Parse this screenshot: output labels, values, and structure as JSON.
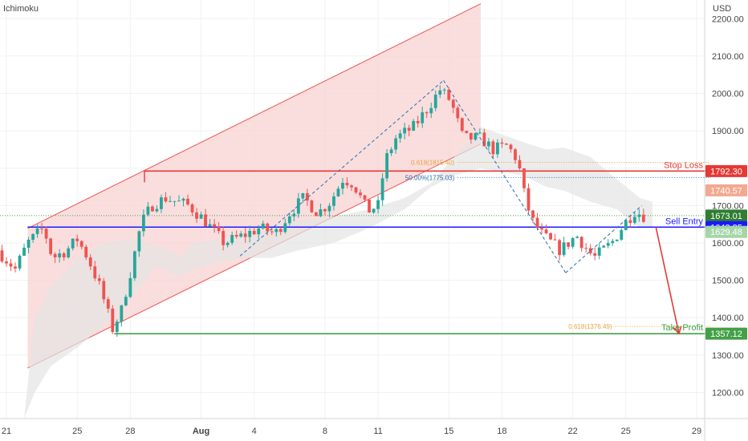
{
  "chart_data": {
    "type": "candlestick",
    "indicator": "Ichimoku",
    "currency": "USD",
    "y_range": [
      1130,
      2250
    ],
    "y_ticks": [
      2200,
      2100,
      2000,
      1900,
      1800,
      1700,
      1600,
      1500,
      1400,
      1300,
      1200
    ],
    "y_tick_labels": [
      "2200.00",
      "2100.00",
      "2000.00",
      "1900.00",
      "1800.00",
      "1700.00",
      "1600.00",
      "1500.00",
      "1400.00",
      "1300.00",
      "1200.00"
    ],
    "x_range_days": [
      0,
      39
    ],
    "x_ticks": [
      {
        "day": 0,
        "label": "21",
        "bold": false
      },
      {
        "day": 4,
        "label": "25",
        "bold": false
      },
      {
        "day": 7,
        "label": "28",
        "bold": false
      },
      {
        "day": 11,
        "label": "Aug",
        "bold": true
      },
      {
        "day": 14,
        "label": "4",
        "bold": false
      },
      {
        "day": 18,
        "label": "8",
        "bold": false
      },
      {
        "day": 21,
        "label": "11",
        "bold": false
      },
      {
        "day": 25,
        "label": "15",
        "bold": false
      },
      {
        "day": 28,
        "label": "18",
        "bold": false
      },
      {
        "day": 32,
        "label": "22",
        "bold": false
      },
      {
        "day": 35,
        "label": "25",
        "bold": false
      },
      {
        "day": 39,
        "label": "29",
        "bold": false
      }
    ],
    "price_anchors": [
      {
        "day": -0.5,
        "price": 1580
      },
      {
        "day": 0.5,
        "price": 1530
      },
      {
        "day": 1.2,
        "price": 1600
      },
      {
        "day": 2.1,
        "price": 1640
      },
      {
        "day": 2.6,
        "price": 1560
      },
      {
        "day": 3.4,
        "price": 1580
      },
      {
        "day": 4.0,
        "price": 1610
      },
      {
        "day": 4.6,
        "price": 1560
      },
      {
        "day": 5.3,
        "price": 1480
      },
      {
        "day": 6.0,
        "price": 1370
      },
      {
        "day": 6.5,
        "price": 1420
      },
      {
        "day": 7.1,
        "price": 1540
      },
      {
        "day": 7.6,
        "price": 1650
      },
      {
        "day": 8.2,
        "price": 1700
      },
      {
        "day": 9.0,
        "price": 1720
      },
      {
        "day": 10.3,
        "price": 1700
      },
      {
        "day": 11.2,
        "price": 1660
      },
      {
        "day": 12.3,
        "price": 1600
      },
      {
        "day": 13.4,
        "price": 1620
      },
      {
        "day": 14.3,
        "price": 1640
      },
      {
        "day": 15.2,
        "price": 1625
      },
      {
        "day": 16.0,
        "price": 1680
      },
      {
        "day": 16.8,
        "price": 1720
      },
      {
        "day": 17.6,
        "price": 1680
      },
      {
        "day": 18.3,
        "price": 1710
      },
      {
        "day": 19.0,
        "price": 1770
      },
      {
        "day": 19.6,
        "price": 1760
      },
      {
        "day": 20.4,
        "price": 1685
      },
      {
        "day": 21.0,
        "price": 1700
      },
      {
        "day": 21.4,
        "price": 1820
      },
      {
        "day": 22.0,
        "price": 1880
      },
      {
        "day": 23.0,
        "price": 1910
      },
      {
        "day": 23.8,
        "price": 1960
      },
      {
        "day": 24.5,
        "price": 2010
      },
      {
        "day": 25.1,
        "price": 1980
      },
      {
        "day": 25.8,
        "price": 1880
      },
      {
        "day": 26.8,
        "price": 1880
      },
      {
        "day": 27.5,
        "price": 1850
      },
      {
        "day": 28.3,
        "price": 1860
      },
      {
        "day": 28.9,
        "price": 1820
      },
      {
        "day": 29.3,
        "price": 1720
      },
      {
        "day": 29.7,
        "price": 1660
      },
      {
        "day": 30.3,
        "price": 1620
      },
      {
        "day": 31.3,
        "price": 1580
      },
      {
        "day": 32.2,
        "price": 1620
      },
      {
        "day": 33.2,
        "price": 1560
      },
      {
        "day": 34.2,
        "price": 1600
      },
      {
        "day": 34.9,
        "price": 1650
      },
      {
        "day": 35.5,
        "price": 1685
      },
      {
        "day": 36.0,
        "price": 1673
      }
    ],
    "rising_channel": [
      {
        "day": 1.2,
        "price": 1639
      },
      {
        "day": 26.8,
        "price": 2240
      },
      {
        "day": 26.8,
        "price": 1865
      },
      {
        "day": 1.2,
        "price": 1265
      }
    ],
    "cloud_upper": [
      {
        "day": 1.0,
        "price": 1130
      },
      {
        "day": 1.6,
        "price": 1400
      },
      {
        "day": 2.5,
        "price": 1480
      },
      {
        "day": 4.0,
        "price": 1560
      },
      {
        "day": 5.5,
        "price": 1600
      },
      {
        "day": 7.0,
        "price": 1610
      },
      {
        "day": 8.5,
        "price": 1590
      },
      {
        "day": 9.3,
        "price": 1580
      },
      {
        "day": 9.8,
        "price": 1560
      },
      {
        "day": 10.5,
        "price": 1600
      },
      {
        "day": 12.0,
        "price": 1610
      },
      {
        "day": 13.5,
        "price": 1620
      },
      {
        "day": 15.0,
        "price": 1640
      },
      {
        "day": 16.5,
        "price": 1660
      },
      {
        "day": 18.5,
        "price": 1670
      },
      {
        "day": 20.5,
        "price": 1690
      },
      {
        "day": 22.5,
        "price": 1720
      },
      {
        "day": 24.0,
        "price": 1760
      },
      {
        "day": 25.3,
        "price": 1830
      },
      {
        "day": 26.8,
        "price": 1910
      },
      {
        "day": 28.0,
        "price": 1890
      },
      {
        "day": 29.2,
        "price": 1870
      },
      {
        "day": 30.5,
        "price": 1850
      },
      {
        "day": 31.5,
        "price": 1855
      },
      {
        "day": 33.0,
        "price": 1830
      },
      {
        "day": 34.5,
        "price": 1770
      },
      {
        "day": 35.8,
        "price": 1720
      },
      {
        "day": 36.5,
        "price": 1710
      }
    ],
    "cloud_lower": [
      {
        "day": 36.5,
        "price": 1640
      },
      {
        "day": 35.8,
        "price": 1640
      },
      {
        "day": 34.5,
        "price": 1690
      },
      {
        "day": 33.0,
        "price": 1710
      },
      {
        "day": 31.5,
        "price": 1740
      },
      {
        "day": 30.5,
        "price": 1750
      },
      {
        "day": 29.2,
        "price": 1780
      },
      {
        "day": 28.0,
        "price": 1790
      },
      {
        "day": 26.8,
        "price": 1800
      },
      {
        "day": 25.3,
        "price": 1780
      },
      {
        "day": 24.0,
        "price": 1750
      },
      {
        "day": 22.5,
        "price": 1690
      },
      {
        "day": 20.5,
        "price": 1640
      },
      {
        "day": 18.5,
        "price": 1600
      },
      {
        "day": 16.5,
        "price": 1580
      },
      {
        "day": 15.0,
        "price": 1560
      },
      {
        "day": 13.5,
        "price": 1560
      },
      {
        "day": 12.0,
        "price": 1550
      },
      {
        "day": 10.5,
        "price": 1530
      },
      {
        "day": 9.8,
        "price": 1510
      },
      {
        "day": 9.3,
        "price": 1520
      },
      {
        "day": 8.5,
        "price": 1540
      },
      {
        "day": 7.0,
        "price": 1450
      },
      {
        "day": 5.5,
        "price": 1380
      },
      {
        "day": 4.0,
        "price": 1320
      },
      {
        "day": 2.5,
        "price": 1270
      },
      {
        "day": 1.6,
        "price": 1200
      },
      {
        "day": 1.0,
        "price": 1130
      }
    ],
    "horizontal_levels": [
      {
        "name": "stop-loss-line",
        "price": 1792.3,
        "from_day": 7.8,
        "to_day": 39.8,
        "color": "#e53935"
      },
      {
        "name": "sell-entry-line",
        "price": 1642.25,
        "from_day": 1.2,
        "to_day": 39.8,
        "color": "#1a1aff"
      },
      {
        "name": "take-profit-line",
        "price": 1357.12,
        "from_day": 6.1,
        "to_day": 39.8,
        "color": "#43a047"
      }
    ],
    "fib_levels": [
      {
        "label": "0.618(1815.40)",
        "price": 1815.4,
        "from_day": 25.5,
        "to_day": 39.8,
        "color": "#e6a23c"
      },
      {
        "label": "50.00%(1775.03)",
        "price": 1775.03,
        "from_day": 25.5,
        "to_day": 39.8,
        "color": "#2b6cb0"
      },
      {
        "label": "0.618(1376.49)",
        "price": 1376.49,
        "from_day": 34.4,
        "to_day": 39.8,
        "color": "#e6a23c"
      }
    ],
    "current_price_line": {
      "price": 1673.01,
      "color": "#43a047"
    },
    "zigzag_legs": [
      {
        "from": {
          "day": 13.2,
          "price": 1565
        },
        "to": {
          "day": 24.7,
          "price": 2035
        }
      },
      {
        "from": {
          "day": 24.7,
          "price": 2035
        },
        "to": {
          "day": 31.6,
          "price": 1520
        }
      },
      {
        "from": {
          "day": 31.6,
          "price": 1520
        },
        "to": {
          "day": 35.9,
          "price": 1700
        }
      }
    ],
    "projection_arrow": {
      "from": {
        "day": 36.7,
        "price": 1642
      },
      "to": {
        "day": 38.0,
        "price": 1357
      },
      "color": "#e53935"
    },
    "annotations": [
      {
        "label": "Stop Loss",
        "price": 1792.3,
        "color": "#e53935"
      },
      {
        "label": "Sell Entry",
        "price": 1642.25,
        "color": "#1a1aff"
      },
      {
        "label": "Take Profit",
        "price": 1357.12,
        "color": "#43a047"
      }
    ],
    "price_badges": [
      {
        "label": "1792.30",
        "price": 1792.3,
        "bg": "#e53935"
      },
      {
        "label": "1740.57",
        "price": 1740.57,
        "bg": "#f2a990"
      },
      {
        "label": "1673.01",
        "price": 1673.01,
        "bg": "#2e7d32"
      },
      {
        "label": "1642.25",
        "price": 1642.25,
        "bg": "#1a1aff"
      },
      {
        "label": "1629.48",
        "price": 1629.48,
        "bg": "#a5d6a7"
      },
      {
        "label": "1357.12",
        "price": 1357.12,
        "bg": "#43a047"
      }
    ]
  },
  "indicator_label": "Ichimoku",
  "currency_label": "USD",
  "colors": {
    "up": "#26a69a",
    "down": "#ef5350",
    "channel_fill": "#f8d3d3",
    "channel_line": "#ef5350",
    "cloud_fill": "#e4e4e4",
    "zigzag": "#2b6cb0",
    "grid": "#f1f1f1",
    "axis_text": "#444444"
  }
}
